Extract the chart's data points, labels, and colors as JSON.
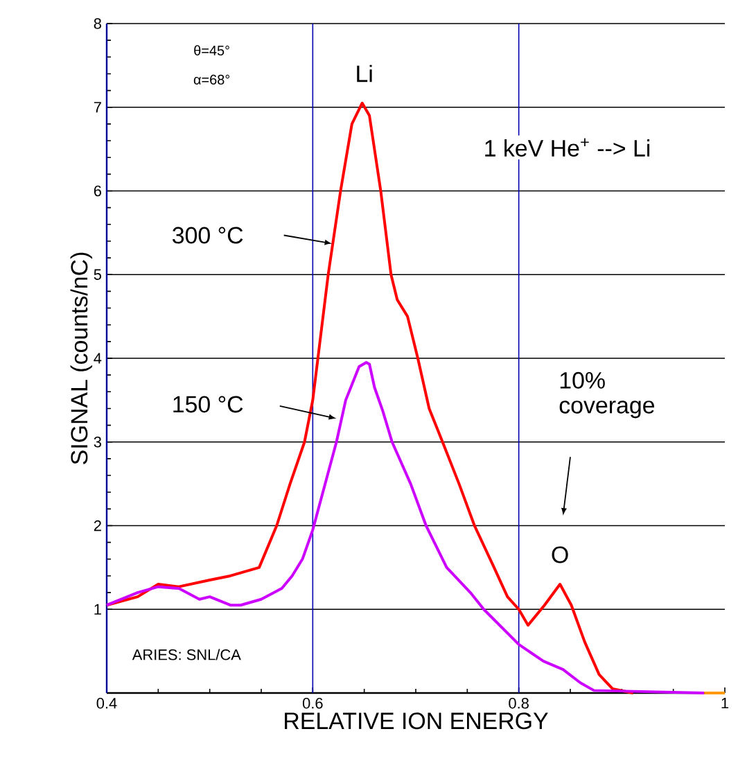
{
  "chart_data": {
    "type": "line",
    "xlabel": "RELATIVE ION ENERGY",
    "ylabel": "SIGNAL (counts/nC)",
    "xlim": [
      0.4,
      1.0
    ],
    "ylim": [
      0,
      8
    ],
    "xticks": [
      0.4,
      0.6,
      0.8,
      1
    ],
    "yticks": [
      1,
      2,
      3,
      4,
      5,
      6,
      7,
      8
    ],
    "grid": true,
    "annotations": [
      "θ=45°",
      "α=68°",
      {
        "text": "Li",
        "x": 0.65,
        "y": 7.05
      },
      "1 keV He$^{+}$ --> Li",
      "300 °C",
      "150 °C",
      "10% coverage",
      {
        "text": "O",
        "x": 0.84,
        "y": 1.3
      },
      "ARIES: SNL/CA"
    ],
    "series": [
      {
        "color": "#ff0000",
        "x": [
          0.4,
          0.43,
          0.45,
          0.47,
          0.5,
          0.52,
          0.548,
          0.565,
          0.578,
          0.592,
          0.6,
          0.605,
          0.615,
          0.627,
          0.638,
          0.648,
          0.655,
          0.666,
          0.676,
          0.682,
          0.692,
          0.702,
          0.713,
          0.726,
          0.742,
          0.757,
          0.776,
          0.789,
          0.8,
          0.809,
          0.825,
          0.84,
          0.851,
          0.864,
          0.878,
          0.891,
          0.911
        ],
        "values": [
          1.05,
          1.15,
          1.3,
          1.27,
          1.35,
          1.4,
          1.5,
          2.0,
          2.5,
          3.0,
          3.5,
          4.0,
          5.0,
          6.0,
          6.8,
          7.05,
          6.9,
          6.0,
          5.0,
          4.7,
          4.5,
          4.0,
          3.4,
          3.0,
          2.5,
          2.0,
          1.5,
          1.15,
          1.0,
          0.81,
          1.05,
          1.3,
          1.05,
          0.61,
          0.22,
          0.05,
          0
        ]
      },
      {
        "color": "#cc00ff",
        "x": [
          0.4,
          0.43,
          0.45,
          0.47,
          0.49,
          0.5,
          0.52,
          0.53,
          0.55,
          0.57,
          0.58,
          0.59,
          0.6,
          0.623,
          0.632,
          0.645,
          0.652,
          0.655,
          0.66,
          0.668,
          0.677,
          0.695,
          0.71,
          0.73,
          0.753,
          0.766,
          0.8,
          0.824,
          0.843,
          0.86,
          0.873,
          0.98
        ],
        "values": [
          1.05,
          1.2,
          1.27,
          1.25,
          1.12,
          1.15,
          1.05,
          1.05,
          1.12,
          1.25,
          1.4,
          1.6,
          1.95,
          3.0,
          3.5,
          3.9,
          3.95,
          3.93,
          3.65,
          3.37,
          3.0,
          2.5,
          2.0,
          1.5,
          1.2,
          1.0,
          0.58,
          0.38,
          0.28,
          0.12,
          0.03,
          0
        ]
      },
      {
        "color": "#ff9900",
        "x": [
          0.98,
          1.0
        ],
        "values": [
          0,
          0
        ]
      }
    ]
  }
}
